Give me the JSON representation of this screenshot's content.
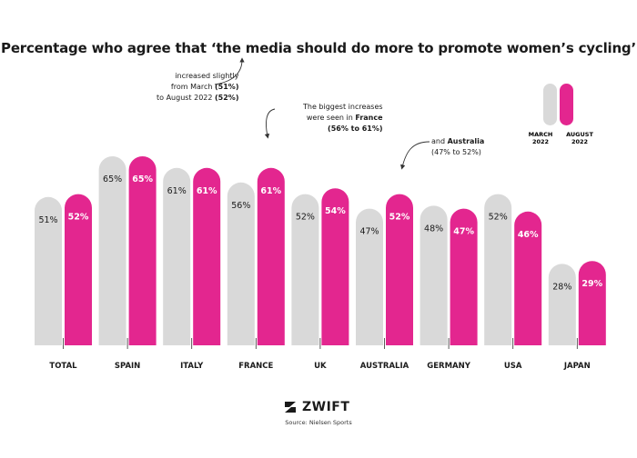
{
  "title": "Percentage who agree that ‘the media should do more to promote women’s cycling’",
  "annotations": {
    "total": {
      "pre": "increased slightly",
      "line2_pre": "from March ",
      "line2_b": "(51%)",
      "line3_pre": "to August 2022 ",
      "line3_b": "(52%)"
    },
    "france": {
      "line1": "The biggest increases",
      "line2_pre": "were seen in ",
      "line2_b": "France",
      "line3_b": "(56% to 61%)"
    },
    "australia": {
      "line1_pre": "and ",
      "line1_b": "Australia",
      "line2": "(47% to 52%)"
    }
  },
  "legend": {
    "march_line1": "MARCH",
    "march_line2": "2022",
    "august_line1": "AUGUST",
    "august_line2": "2022"
  },
  "logo": "ZWIFT",
  "source": "Source: Nielsen Sports",
  "colors": {
    "march": "#d9d9d9",
    "august": "#e3268f",
    "text": "#1a1a1a"
  },
  "chart_data": {
    "type": "bar",
    "categories": [
      "TOTAL",
      "SPAIN",
      "ITALY",
      "FRANCE",
      "UK",
      "AUSTRALIA",
      "GERMANY",
      "USA",
      "JAPAN"
    ],
    "series": [
      {
        "name": "MARCH 2022",
        "values": [
          51,
          65,
          61,
          56,
          52,
          47,
          48,
          52,
          28
        ]
      },
      {
        "name": "AUGUST 2022",
        "values": [
          52,
          65,
          61,
          61,
          54,
          52,
          47,
          46,
          29
        ]
      }
    ],
    "value_labels": {
      "MARCH 2022": [
        "51%",
        "65%",
        "61%",
        "56%",
        "52%",
        "47%",
        "48%",
        "52%",
        "28%"
      ],
      "AUGUST 2022": [
        "52%",
        "65%",
        "61%",
        "61%",
        "54%",
        "52%",
        "47%",
        "46%",
        "29%"
      ]
    },
    "ylim": [
      0,
      70
    ],
    "legend_position": "top-right"
  }
}
